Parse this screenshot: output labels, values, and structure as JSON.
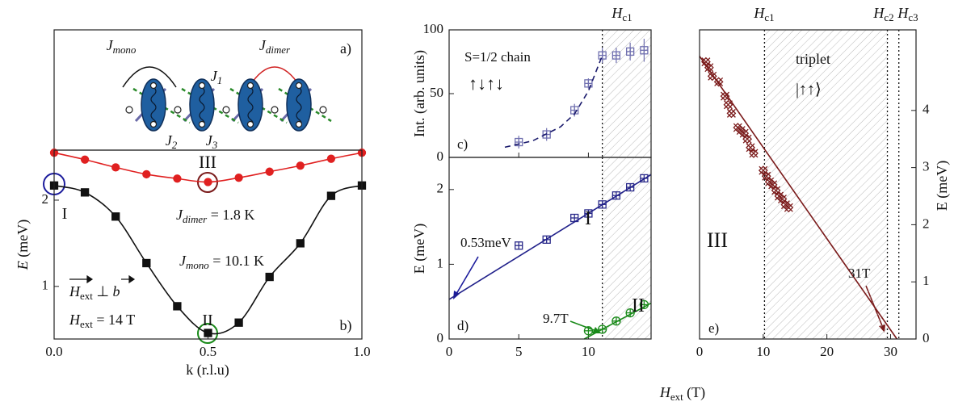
{
  "x_label": [
    {
      "text": "H",
      "italic": true
    },
    {
      "text": "ext",
      "sub": true
    },
    {
      "text": " (T)"
    }
  ],
  "diagram": {
    "labels": [
      {
        "pieces": [
          {
            "text": "J",
            "italic": true
          },
          {
            "text": "mono",
            "sub": true,
            "italic": true
          }
        ],
        "color": "#111111"
      },
      {
        "pieces": [
          {
            "text": "J",
            "italic": true
          },
          {
            "text": "dimer",
            "sub": true,
            "italic": true
          }
        ],
        "color": "#d02020"
      },
      {
        "pieces": [
          {
            "text": "J",
            "italic": true
          },
          {
            "text": "1",
            "sub": true,
            "italic": true
          }
        ],
        "color": "#6a6aa8"
      },
      {
        "pieces": [
          {
            "text": "J",
            "italic": true
          },
          {
            "text": "2",
            "sub": true,
            "italic": true
          }
        ],
        "color": "#1f5fa0"
      },
      {
        "pieces": [
          {
            "text": "J",
            "italic": true
          },
          {
            "text": "3",
            "sub": true,
            "italic": true
          }
        ],
        "color": "#2a8a2a"
      },
      {
        "pieces": [
          {
            "text": "a)"
          }
        ],
        "color": "#111111"
      }
    ]
  },
  "chart_data": [
    {
      "type": "scatter",
      "xlabel": [
        {
          "text": "k (r.l.u)"
        }
      ],
      "ylabel": [
        {
          "text": "E",
          "italic": true
        },
        {
          "text": " (meV)"
        }
      ],
      "xlim": [
        0,
        1
      ],
      "xticks": [
        {
          "value": 0,
          "label": "0.0"
        },
        {
          "value": 0.5,
          "label": "0.5"
        },
        {
          "value": 1,
          "label": "1.0"
        }
      ],
      "ylim": [
        0.39,
        2.58
      ],
      "yticks": [
        1,
        2
      ],
      "yaxis_side": "left",
      "show_xtick_labels": true,
      "series": [
        {
          "x": [
            0,
            0.1,
            0.2,
            0.3,
            0.4,
            0.5,
            0.6,
            0.7,
            0.8,
            0.9,
            1.0
          ],
          "values": [
            2.17,
            2.09,
            1.81,
            1.27,
            0.77,
            0.46,
            0.58,
            1.11,
            1.5,
            2.05,
            2.17
          ],
          "color": "#111111",
          "marker": "square_filled",
          "line": "smooth"
        },
        {
          "x": [
            0,
            0.1,
            0.2,
            0.3,
            0.4,
            0.5,
            0.6,
            0.7,
            0.8,
            0.9,
            1.0
          ],
          "values": [
            2.55,
            2.47,
            2.38,
            2.3,
            2.25,
            2.21,
            2.26,
            2.33,
            2.4,
            2.48,
            2.55
          ],
          "color": "#e02020",
          "marker": "circle_filled",
          "line": "smooth"
        }
      ],
      "annotations": [
        {
          "pieces": [
            {
              "text": "III"
            }
          ],
          "color": "#7a1a1a"
        },
        {
          "pieces": [
            {
              "text": "I"
            }
          ],
          "color": "#1c1c9c"
        },
        {
          "pieces": [
            {
              "text": "II"
            }
          ],
          "color": "#1a8a1a"
        },
        {
          "pieces": [
            {
              "text": "J",
              "italic": true
            },
            {
              "text": "dimer",
              "sub": true,
              "italic": true
            },
            {
              "text": " = 1.8 K"
            }
          ],
          "color": "#d02020"
        },
        {
          "pieces": [
            {
              "text": "J",
              "italic": true
            },
            {
              "text": "mono",
              "sub": true,
              "italic": true
            },
            {
              "text": " = 10.1 K"
            }
          ],
          "color": "#111111"
        },
        {
          "pieces": [
            {
              "text": "H",
              "italic": true
            },
            {
              "text": "ext",
              "sub": true
            },
            {
              "text": " ⊥ "
            },
            {
              "text": "b",
              "italic": true
            }
          ],
          "color": "#111111"
        },
        {
          "pieces": [
            {
              "text": "H",
              "italic": true
            },
            {
              "text": "ext",
              "sub": true
            },
            {
              "text": " = 14 T"
            }
          ],
          "color": "#111111"
        },
        {
          "pieces": [
            {
              "text": "b)"
            }
          ],
          "color": "#111111"
        }
      ]
    },
    {
      "type": "scatter",
      "ylabel": [
        {
          "text": "Int. (arb. units)"
        }
      ],
      "xlim": [
        0,
        14.5
      ],
      "xticks": [
        0,
        5,
        10
      ],
      "show_xtick_labels": false,
      "ylim": [
        0,
        100
      ],
      "yticks": [
        0,
        50,
        100
      ],
      "yaxis_side": "left",
      "vlines": [
        11
      ],
      "shaded_range": [
        11,
        14.5
      ],
      "series": [
        {
          "x": [
            5,
            7,
            9,
            10,
            11,
            12,
            13,
            14
          ],
          "values": [
            12,
            18,
            37,
            58,
            80,
            80,
            83,
            84
          ],
          "errors": [
            5,
            5,
            5,
            4,
            6,
            6,
            7,
            9
          ],
          "color": "#7070b0",
          "marker": "square_cross"
        },
        {
          "x": [
            4,
            6,
            8,
            9,
            10,
            11
          ],
          "values": [
            8,
            13,
            24,
            34,
            52,
            80
          ],
          "color": "#1a1a6c",
          "line": "dashed"
        }
      ],
      "annotations": [
        {
          "pieces": [
            {
              "text": "S=1/2 chain"
            }
          ],
          "color": "#111111"
        },
        {
          "pieces": [
            {
              "text": "c)"
            }
          ],
          "color": "#111111"
        },
        {
          "pieces": [
            {
              "text": "H",
              "italic": true
            },
            {
              "text": "c1",
              "sub": true
            }
          ],
          "color": "#111111"
        }
      ]
    },
    {
      "type": "scatter",
      "ylabel": [
        {
          "text": "E (meV)"
        }
      ],
      "xlim": [
        0,
        14.5
      ],
      "xticks": [
        0,
        5,
        10
      ],
      "show_xtick_labels": true,
      "ylim": [
        0,
        2.43
      ],
      "yticks": [
        0,
        1,
        2
      ],
      "yaxis_side": "left",
      "vlines": [
        11
      ],
      "shaded_range": [
        11,
        14.5
      ],
      "series": [
        {
          "x": [
            5,
            7,
            9,
            10,
            11,
            12,
            13,
            14
          ],
          "values": [
            1.25,
            1.33,
            1.62,
            1.68,
            1.8,
            1.92,
            2.03,
            2.15
          ],
          "color": "#2a2a8a",
          "marker": "square_cross"
        },
        {
          "x": [
            0,
            14.5
          ],
          "values": [
            0.53,
            2.2
          ],
          "color": "#20208a",
          "line": "solid"
        },
        {
          "x": [
            10,
            11,
            12,
            13,
            14
          ],
          "values": [
            0.11,
            0.13,
            0.24,
            0.35,
            0.46
          ],
          "color": "#1a8a1a",
          "marker": "circle_cross"
        },
        {
          "x": [
            9.7,
            14.5
          ],
          "values": [
            0,
            0.48
          ],
          "color": "#1a8a1a",
          "line": "solid"
        }
      ],
      "annotations": [
        {
          "pieces": [
            {
              "text": "I"
            }
          ],
          "color": "#1c1c9c"
        },
        {
          "pieces": [
            {
              "text": "0.53meV"
            }
          ],
          "color": "#1c1c9c"
        },
        {
          "pieces": [
            {
              "text": "9.7T"
            }
          ],
          "color": "#1a8a1a"
        },
        {
          "pieces": [
            {
              "text": "II"
            }
          ],
          "color": "#1a8a1a"
        },
        {
          "pieces": [
            {
              "text": "d)"
            }
          ],
          "color": "#111111"
        }
      ]
    },
    {
      "type": "scatter",
      "ylabel": [
        {
          "text": "E (meV)"
        }
      ],
      "xlim": [
        0,
        34
      ],
      "xticks": [
        0,
        10,
        20,
        30
      ],
      "show_xtick_labels": true,
      "ylim": [
        0,
        5.41
      ],
      "yticks": [
        0,
        1,
        2,
        3,
        4
      ],
      "yaxis_side": "right",
      "vlines": [
        10.2,
        29.5,
        31.3
      ],
      "shaded_range": [
        10.2,
        29.5
      ],
      "series": [
        {
          "x": [
            1,
            1.5,
            2,
            3,
            4,
            4.5,
            5,
            6,
            6.5,
            7,
            7.5,
            8,
            8.5,
            10,
            10.5,
            11,
            11.5,
            12,
            12.5,
            13,
            13.5,
            14
          ],
          "values": [
            4.85,
            4.75,
            4.6,
            4.5,
            4.25,
            4.1,
            3.95,
            3.7,
            3.65,
            3.6,
            3.5,
            3.35,
            3.25,
            2.95,
            2.85,
            2.75,
            2.7,
            2.6,
            2.5,
            2.45,
            2.35,
            2.3
          ],
          "color": "#7a1a1a",
          "marker": "x"
        },
        {
          "x": [
            0,
            31
          ],
          "values": [
            4.95,
            0
          ],
          "color": "#7a1a1a",
          "line": "solid"
        }
      ],
      "annotations": [
        {
          "pieces": [
            {
              "text": "III"
            }
          ],
          "color": "#7a1a1a"
        },
        {
          "pieces": [
            {
              "text": "triplet"
            }
          ],
          "color": "#111111"
        },
        {
          "pieces": [
            {
              "text": "|↑↑⟩"
            }
          ],
          "color": "#111111"
        },
        {
          "pieces": [
            {
              "text": "31T"
            }
          ],
          "color": "#7a1a1a"
        },
        {
          "pieces": [
            {
              "text": "e)"
            }
          ],
          "color": "#111111"
        },
        {
          "pieces": [
            {
              "text": "H",
              "italic": true
            },
            {
              "text": "c1",
              "sub": true
            }
          ],
          "color": "#111111"
        },
        {
          "pieces": [
            {
              "text": "H",
              "italic": true
            },
            {
              "text": "c2",
              "sub": true
            }
          ],
          "color": "#111111"
        },
        {
          "pieces": [
            {
              "text": "H",
              "italic": true
            },
            {
              "text": "c3",
              "sub": true
            }
          ],
          "color": "#111111"
        }
      ]
    }
  ]
}
